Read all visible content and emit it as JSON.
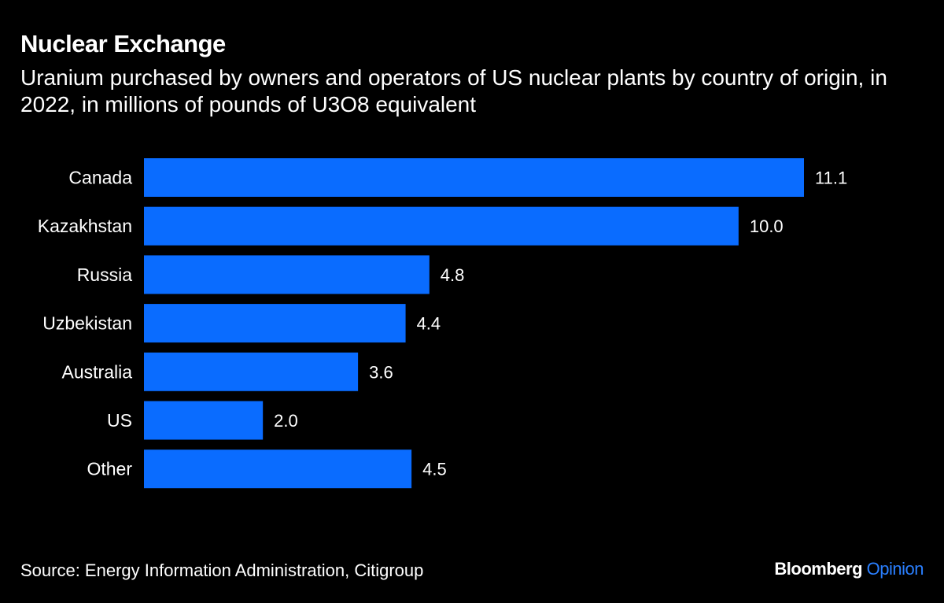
{
  "title": "Nuclear Exchange",
  "subtitle": "Uranium purchased by owners and operators of US nuclear plants by country of origin, in 2022, in millions of pounds of U3O8 equivalent",
  "source": "Source: Energy Information Administration, Citigroup",
  "logo": {
    "brand": "Bloomberg",
    "section": "Opinion"
  },
  "colors": {
    "bar": "#0a6cff",
    "background": "#000000",
    "text": "#ffffff",
    "logo_accent": "#2a7fff"
  },
  "chart_data": {
    "type": "bar",
    "orientation": "horizontal",
    "categories": [
      "Canada",
      "Kazakhstan",
      "Russia",
      "Uzbekistan",
      "Australia",
      "US",
      "Other"
    ],
    "values": [
      11.1,
      10.0,
      4.8,
      4.4,
      3.6,
      2.0,
      4.5
    ],
    "value_labels": [
      "11.1",
      "10.0",
      "4.8",
      "4.4",
      "3.6",
      "2.0",
      "4.5"
    ],
    "xlim": [
      0,
      11.1
    ],
    "grid": false,
    "legend": "none"
  }
}
